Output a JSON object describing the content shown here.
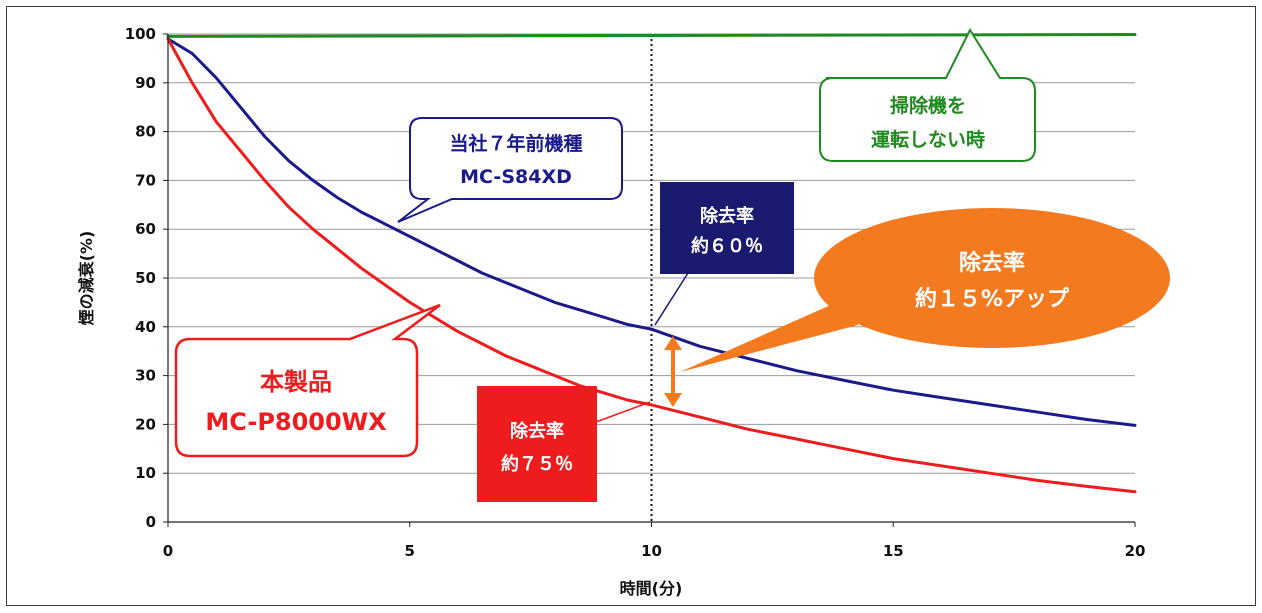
{
  "chart_data": {
    "type": "line",
    "xlabel": "時間(分)",
    "ylabel": "煙の減衰(%)",
    "xlim": [
      0,
      20
    ],
    "ylim": [
      0,
      100
    ],
    "x_ticks": [
      "0",
      "5",
      "10",
      "15",
      "20"
    ],
    "y_ticks": [
      "0",
      "10",
      "20",
      "30",
      "40",
      "50",
      "60",
      "70",
      "80",
      "90",
      "100"
    ],
    "grid": true,
    "reference_line": {
      "x": 10,
      "style": "dotted"
    },
    "series": [
      {
        "key": "no_cleaner",
        "color": "#1f8a1f",
        "x": [
          0,
          5,
          10,
          15,
          20
        ],
        "y": [
          99.5,
          99.6,
          99.7,
          99.8,
          99.9
        ]
      },
      {
        "key": "old_model",
        "color": "#1a1a8c",
        "x": [
          0,
          0.5,
          1,
          1.5,
          2,
          2.5,
          3,
          3.5,
          4,
          4.5,
          5,
          5.5,
          6,
          6.5,
          7,
          7.5,
          8,
          8.5,
          9,
          9.5,
          10,
          11,
          12,
          13,
          14,
          15,
          16,
          17,
          18,
          19,
          20
        ],
        "y": [
          99,
          96,
          91,
          85,
          79,
          74,
          70,
          66.5,
          63.5,
          61,
          58.5,
          56,
          53.5,
          51,
          49,
          47,
          45,
          43.5,
          42,
          40.5,
          39.5,
          36,
          33.5,
          31,
          29,
          27,
          25.5,
          24,
          22.5,
          21,
          19.8
        ]
      },
      {
        "key": "this_product",
        "color": "#ee1c1c",
        "x": [
          0,
          0.5,
          1,
          1.5,
          2,
          2.5,
          3,
          3.5,
          4,
          4.5,
          5,
          5.5,
          6,
          6.5,
          7,
          7.5,
          8,
          8.5,
          9,
          9.5,
          10,
          11,
          12,
          13,
          14,
          15,
          16,
          17,
          18,
          19,
          20
        ],
        "y": [
          99,
          90,
          82,
          76,
          70,
          64.5,
          60,
          56,
          52,
          48.5,
          45,
          42,
          39,
          36.5,
          34,
          32,
          30,
          28,
          26.5,
          25,
          24,
          21.5,
          19,
          17,
          15,
          13,
          11.5,
          10,
          8.5,
          7.3,
          6.2
        ]
      }
    ],
    "annotations": {
      "no_cleaner": {
        "line1": "掃除機を",
        "line2": "運転しない時",
        "color": "#1f8a1f"
      },
      "old_model": {
        "line1": "当社７年前機種",
        "line2": "MC-S84XD",
        "color": "#1a1a8c"
      },
      "this_product": {
        "line1": "本製品",
        "line2": "MC-P8000WX",
        "color": "#ee1c1c"
      },
      "old_rate": {
        "line1": "除去率",
        "line2": "約６０％",
        "bg": "#1a1a6e"
      },
      "new_rate": {
        "line1": "除去率",
        "line2": "約７５％",
        "bg": "#ee1c1c"
      },
      "improvement": {
        "line1": "除去率",
        "line2": "約１５%アップ",
        "bg": "#f47a1f"
      }
    }
  }
}
